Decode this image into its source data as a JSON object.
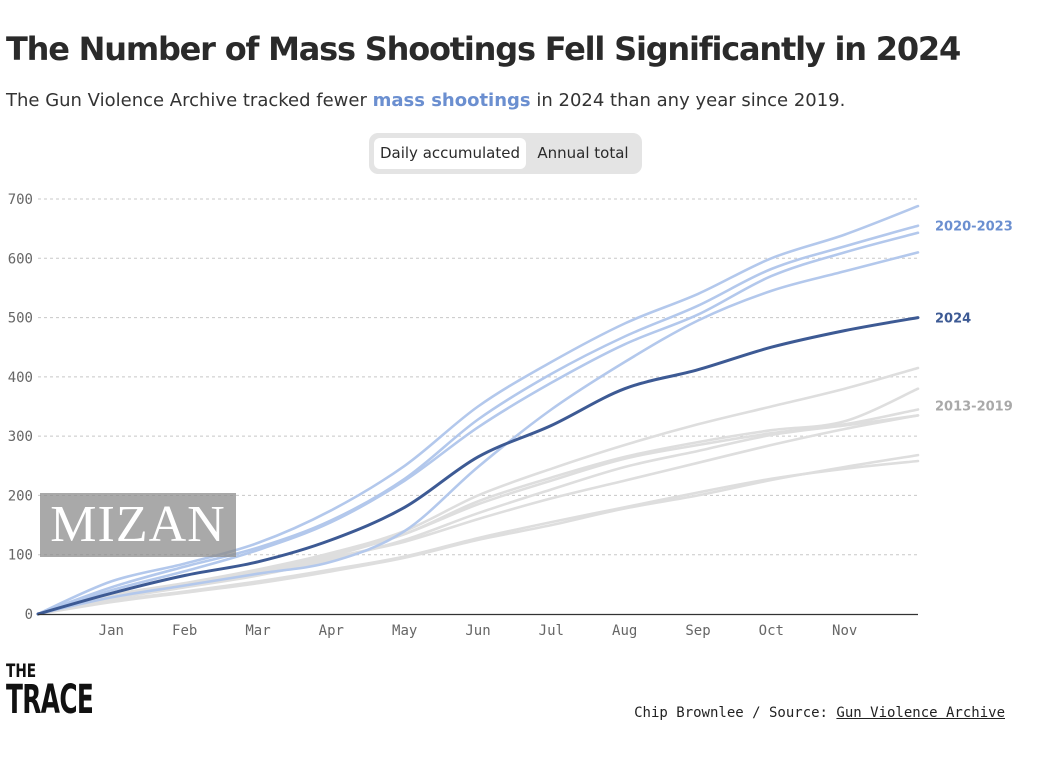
{
  "title": "The Number of Mass Shootings Fell Significantly in 2024",
  "subtitle": {
    "before": "The Gun Violence Archive tracked fewer ",
    "highlight": "mass shootings",
    "after": " in 2024 than any year since 2019."
  },
  "toggle": {
    "options": [
      "Daily accumulated",
      "Annual total"
    ],
    "selected": "Daily accumulated"
  },
  "colors": {
    "highlight": "#3d5a94",
    "recent": "#b3c8ec",
    "older": "#dedede",
    "recent_label": "#6b8fd0",
    "older_label": "#a9a9a9",
    "grid": "#c8c8c8"
  },
  "chart_data": {
    "type": "line",
    "title": "The Number of Mass Shootings Fell Significantly in 2024",
    "xlabel": "",
    "ylabel": "",
    "x_unit": "month",
    "x": [
      0,
      1,
      2,
      3,
      4,
      5,
      6,
      7,
      8,
      9,
      10,
      11,
      12
    ],
    "xlim": [
      0,
      12
    ],
    "ylim": [
      0,
      700
    ],
    "yticks": [
      "0",
      "100",
      "200",
      "300",
      "400",
      "500",
      "600",
      "700"
    ],
    "ytick_values": [
      0,
      100,
      200,
      300,
      400,
      500,
      600,
      700
    ],
    "xticks": [
      "Jan",
      "Feb",
      "Mar",
      "Apr",
      "May",
      "Jun",
      "Jul",
      "Aug",
      "Sep",
      "Oct",
      "Nov"
    ],
    "xtick_values": [
      1,
      2,
      3,
      4,
      5,
      6,
      7,
      8,
      9,
      10,
      11
    ],
    "grid": true,
    "series_labels": [
      {
        "text": "2020-2023",
        "group": "recent",
        "y": 655
      },
      {
        "text": "2024",
        "group": "highlight",
        "y": 500
      },
      {
        "text": "2013-2019",
        "group": "older",
        "y": 352
      }
    ],
    "series": [
      {
        "name": "2013",
        "group": "older",
        "values": [
          0,
          22,
          38,
          55,
          75,
          97,
          128,
          155,
          180,
          205,
          228,
          245,
          258
        ]
      },
      {
        "name": "2014",
        "group": "older",
        "values": [
          0,
          20,
          36,
          52,
          72,
          95,
          125,
          150,
          178,
          200,
          226,
          248,
          268
        ]
      },
      {
        "name": "2015",
        "group": "older",
        "values": [
          0,
          28,
          48,
          68,
          95,
          122,
          160,
          195,
          225,
          255,
          285,
          312,
          335
        ]
      },
      {
        "name": "2016",
        "group": "older",
        "values": [
          0,
          30,
          50,
          72,
          100,
          135,
          190,
          230,
          265,
          290,
          310,
          325,
          380
        ]
      },
      {
        "name": "2017",
        "group": "older",
        "values": [
          0,
          30,
          50,
          70,
          98,
          135,
          185,
          225,
          262,
          285,
          305,
          320,
          345
        ]
      },
      {
        "name": "2018",
        "group": "older",
        "values": [
          0,
          25,
          45,
          65,
          92,
          125,
          170,
          210,
          248,
          275,
          302,
          318,
          335
        ]
      },
      {
        "name": "2019",
        "group": "older",
        "values": [
          0,
          32,
          52,
          75,
          103,
          140,
          200,
          245,
          285,
          320,
          350,
          380,
          415
        ]
      },
      {
        "name": "2020",
        "group": "recent",
        "values": [
          0,
          28,
          48,
          68,
          88,
          140,
          248,
          345,
          425,
          495,
          545,
          578,
          610
        ]
      },
      {
        "name": "2021",
        "group": "recent",
        "values": [
          0,
          55,
          85,
          120,
          175,
          250,
          350,
          425,
          490,
          540,
          600,
          640,
          688
        ]
      },
      {
        "name": "2022",
        "group": "recent",
        "values": [
          0,
          45,
          80,
          112,
          158,
          228,
          328,
          405,
          468,
          520,
          582,
          620,
          655
        ]
      },
      {
        "name": "2023",
        "group": "recent",
        "values": [
          0,
          40,
          72,
          108,
          155,
          225,
          315,
          390,
          455,
          505,
          570,
          610,
          643
        ]
      },
      {
        "name": "2024",
        "group": "highlight",
        "values": [
          0,
          35,
          65,
          88,
          125,
          180,
          265,
          318,
          380,
          412,
          450,
          478,
          500
        ]
      }
    ]
  },
  "watermark": {
    "text": "MIZAN"
  },
  "logo": {
    "line1": "THE",
    "line2": "TRACE"
  },
  "credit": {
    "prefix": "Chip Brownlee / Source: ",
    "link": "Gun Violence Archive"
  }
}
